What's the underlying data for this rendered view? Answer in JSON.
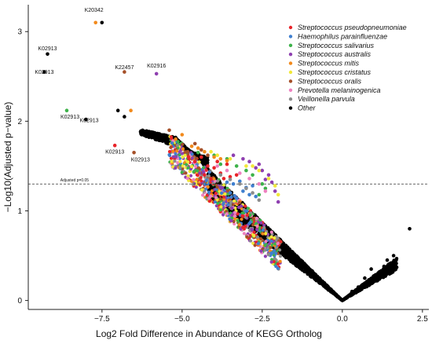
{
  "chart_data": {
    "type": "scatter",
    "xlabel": "Log2 Fold Difference in Abundance of KEGG Ortholog",
    "ylabel": "−Log10(Adjusted p−value)",
    "xlim": [
      -9.8,
      2.7
    ],
    "ylim": [
      -0.1,
      3.3
    ],
    "x_ticks": [
      -7.5,
      -5.0,
      -2.5,
      0.0,
      2.5
    ],
    "x_tick_labels": [
      "−7.5",
      "−5.0",
      "−2.5",
      "0.0",
      "2.5"
    ],
    "y_ticks": [
      0,
      1,
      2,
      3
    ],
    "y_tick_labels": [
      "0",
      "1",
      "2",
      "3"
    ],
    "grid": false,
    "legend_position": "top-right",
    "threshold": {
      "y": 1.3,
      "label": "Adjusted p=0.05",
      "style": "dashed"
    },
    "series": [
      {
        "name": "Streptococcus pseudopneumoniae",
        "color": "#e8242a",
        "points": [
          [
            -7.1,
            1.73
          ],
          [
            -4.6,
            1.55
          ],
          [
            -4.4,
            1.6
          ],
          [
            -4.2,
            1.5
          ],
          [
            -4.0,
            1.48
          ],
          [
            -3.9,
            1.55
          ],
          [
            -3.8,
            1.42
          ],
          [
            -3.6,
            1.52
          ],
          [
            -3.5,
            1.38
          ],
          [
            -3.3,
            1.4
          ],
          [
            -4.3,
            1.4
          ],
          [
            -4.8,
            1.6
          ],
          [
            -3.7,
            1.36
          ],
          [
            -4.1,
            1.35
          ]
        ]
      },
      {
        "name": "Haemophilus parainfluenzae",
        "color": "#3f7fcf",
        "points": [
          [
            -3.6,
            1.32
          ],
          [
            -3.4,
            1.3
          ],
          [
            -3.2,
            1.33
          ],
          [
            -3.0,
            1.26
          ],
          [
            -2.9,
            1.18
          ],
          [
            -3.1,
            1.22
          ],
          [
            -3.3,
            1.14
          ],
          [
            -2.8,
            1.28
          ],
          [
            -2.7,
            1.16
          ],
          [
            -3.5,
            1.2
          ]
        ]
      },
      {
        "name": "Streptococcus salivarius",
        "color": "#3db24a",
        "points": [
          [
            -8.6,
            2.12
          ],
          [
            -4.5,
            1.65
          ],
          [
            -4.0,
            1.62
          ],
          [
            -3.6,
            1.58
          ],
          [
            -3.3,
            1.5
          ],
          [
            -3.0,
            1.45
          ],
          [
            -2.8,
            1.4
          ],
          [
            -2.5,
            1.3
          ],
          [
            -2.4,
            1.25
          ],
          [
            -3.8,
            1.52
          ],
          [
            -2.6,
            1.18
          ]
        ]
      },
      {
        "name": "Streptococcus australis",
        "color": "#8e3fb0",
        "points": [
          [
            -5.8,
            2.53
          ],
          [
            -3.4,
            1.62
          ],
          [
            -3.1,
            1.58
          ],
          [
            -2.9,
            1.55
          ],
          [
            -2.7,
            1.48
          ],
          [
            -2.5,
            1.45
          ],
          [
            -2.3,
            1.4
          ],
          [
            -2.2,
            1.32
          ],
          [
            -2.1,
            1.22
          ],
          [
            -2.0,
            1.1
          ],
          [
            -2.6,
            1.52
          ],
          [
            -2.4,
            1.35
          ]
        ]
      },
      {
        "name": "Streptococcus mitis",
        "color": "#f28a1c",
        "points": [
          [
            -7.7,
            3.1
          ],
          [
            -6.6,
            2.12
          ],
          [
            -5.0,
            1.85
          ],
          [
            -4.7,
            1.72
          ],
          [
            -4.5,
            1.7
          ],
          [
            -4.3,
            1.66
          ],
          [
            -4.0,
            1.6
          ],
          [
            -3.8,
            1.58
          ],
          [
            -3.6,
            1.56
          ],
          [
            -5.2,
            1.8
          ]
        ]
      },
      {
        "name": "Streptococcus cristatus",
        "color": "#f1e83a",
        "points": [
          [
            -4.1,
            1.66
          ],
          [
            -3.9,
            1.62
          ],
          [
            -3.5,
            1.58
          ],
          [
            -3.0,
            1.5
          ],
          [
            -2.6,
            1.45
          ],
          [
            -2.3,
            1.36
          ],
          [
            -2.1,
            1.28
          ],
          [
            -2.0,
            1.18
          ],
          [
            -2.8,
            1.5
          ]
        ]
      },
      {
        "name": "Streptococcus oralis",
        "color": "#a54f28",
        "points": [
          [
            -6.8,
            2.55
          ],
          [
            -6.5,
            1.65
          ],
          [
            -4.6,
            1.75
          ],
          [
            -4.4,
            1.68
          ],
          [
            -4.2,
            1.62
          ],
          [
            -5.4,
            1.9
          ]
        ]
      },
      {
        "name": "Prevotella melaninogenica",
        "color": "#ee82c0",
        "points": [
          [
            -3.9,
            1.5
          ],
          [
            -3.6,
            1.45
          ],
          [
            -3.2,
            1.42
          ],
          [
            -2.9,
            1.36
          ],
          [
            -2.6,
            1.3
          ],
          [
            -2.4,
            1.22
          ]
        ]
      },
      {
        "name": "Veillonella parvula",
        "color": "#8c8c8c",
        "points": [
          [
            -3.5,
            1.35
          ],
          [
            -3.2,
            1.3
          ],
          [
            -3.0,
            1.25
          ],
          [
            -2.8,
            1.2
          ],
          [
            -2.6,
            1.12
          ],
          [
            -3.8,
            1.4
          ]
        ]
      },
      {
        "name": "Other",
        "color": "#000000",
        "points": [
          [
            -7.5,
            3.1
          ],
          [
            -9.2,
            2.75
          ],
          [
            -7.0,
            2.12
          ],
          [
            -6.8,
            2.05
          ],
          [
            -9.3,
            2.55
          ],
          [
            -8.0,
            2.02
          ],
          [
            1.6,
            0.5
          ],
          [
            1.4,
            0.45
          ],
          [
            1.3,
            0.38
          ],
          [
            2.1,
            0.8
          ],
          [
            0.9,
            0.35
          ],
          [
            0.7,
            0.25
          ],
          [
            0.5,
            0.15
          ],
          [
            0.3,
            0.1
          ]
        ]
      }
    ],
    "annotations": [
      {
        "text": "K20342",
        "x": -7.75,
        "y": 3.22
      },
      {
        "text": "K02913",
        "x": -9.2,
        "y": 2.79
      },
      {
        "text": "K02913",
        "x": -9.3,
        "y": 2.53
      },
      {
        "text": "K22457",
        "x": -6.8,
        "y": 2.58
      },
      {
        "text": "K02916",
        "x": -5.8,
        "y": 2.6
      },
      {
        "text": "K02913",
        "x": -8.5,
        "y": 2.03
      },
      {
        "text": "K02913",
        "x": -7.9,
        "y": 1.99
      },
      {
        "text": "K02913",
        "x": -7.1,
        "y": 1.64
      },
      {
        "text": "K02913",
        "x": -6.3,
        "y": 1.55
      }
    ],
    "cloud_note": "dense black background cloud forms a V shape from about (-6.5, 1.9) down to (0, 0) and back up to (1.8, 0.5)"
  }
}
